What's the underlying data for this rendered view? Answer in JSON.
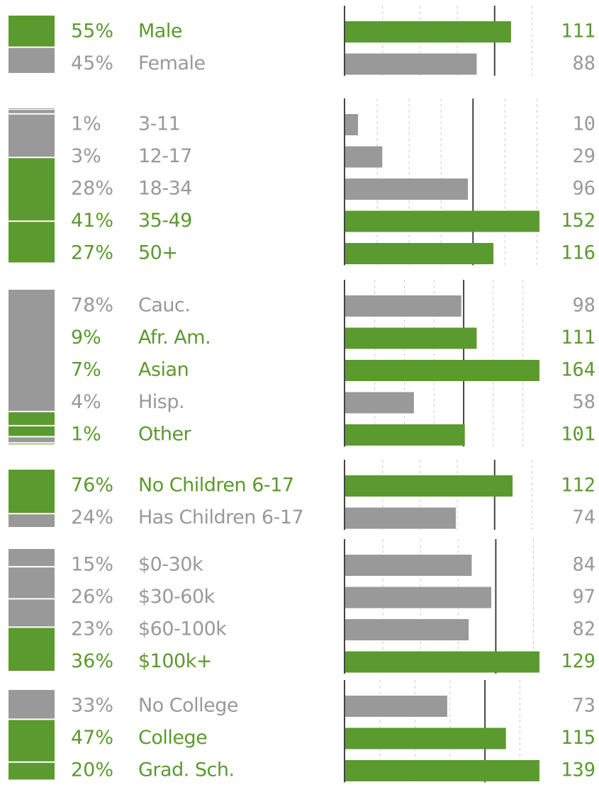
{
  "chart_data": [
    {
      "type": "bar",
      "categories": [
        "Male",
        "Female"
      ],
      "shares": [
        55,
        45
      ],
      "share_labels": [
        "55%",
        "45%"
      ],
      "values": [
        111,
        88
      ],
      "xlim": [
        0,
        130
      ],
      "xticks": [
        25,
        50,
        75,
        100,
        125
      ],
      "reference": 100,
      "color": "#999999",
      "highlight_color": "#5b9a2e"
    },
    {
      "type": "bar",
      "categories": [
        "3-11",
        "12-17",
        "18-34",
        "35-49",
        "50+"
      ],
      "shares": [
        1,
        3,
        28,
        41,
        27
      ],
      "share_labels": [
        "1%",
        "3%",
        "28%",
        "41%",
        "27%"
      ],
      "values": [
        10,
        29,
        96,
        152,
        116
      ],
      "xlim": [
        0,
        152
      ],
      "xticks": [
        25,
        50,
        75,
        100,
        125,
        150
      ],
      "reference": 100,
      "color": "#999999",
      "highlight_color": "#5b9a2e"
    },
    {
      "type": "bar",
      "categories": [
        "Cauc.",
        "Afr. Am.",
        "Asian",
        "Hisp.",
        "Other"
      ],
      "shares": [
        78,
        9,
        7,
        4,
        1
      ],
      "share_labels": [
        "78%",
        "9%",
        "7%",
        "4%",
        "1%"
      ],
      "values": [
        98,
        111,
        164,
        58,
        101
      ],
      "xlim": [
        0,
        164
      ],
      "xticks": [
        25,
        50,
        75,
        100,
        125,
        150
      ],
      "reference": 100,
      "color": "#999999",
      "highlight_color": "#5b9a2e"
    },
    {
      "type": "bar",
      "categories": [
        "No Children 6-17",
        "Has Children 6-17"
      ],
      "shares": [
        76,
        24
      ],
      "share_labels": [
        "76%",
        "24%"
      ],
      "values": [
        112,
        74
      ],
      "xlim": [
        0,
        130
      ],
      "xticks": [
        25,
        50,
        75,
        100,
        125
      ],
      "reference": 100,
      "color": "#999999",
      "highlight_color": "#5b9a2e"
    },
    {
      "type": "bar",
      "categories": [
        "$0-30k",
        "$30-60k",
        "$60-100k",
        "$100k+"
      ],
      "shares": [
        15,
        26,
        23,
        36
      ],
      "share_labels": [
        "15%",
        "26%",
        "23%",
        "36%"
      ],
      "values": [
        84,
        97,
        82,
        129
      ],
      "xlim": [
        0,
        129
      ],
      "xticks": [
        25,
        50,
        75,
        100,
        125
      ],
      "reference": 100,
      "color": "#999999",
      "highlight_color": "#5b9a2e"
    },
    {
      "type": "bar",
      "categories": [
        "No College",
        "College",
        "Grad. Sch."
      ],
      "shares": [
        33,
        47,
        20
      ],
      "share_labels": [
        "33%",
        "47%",
        "20%"
      ],
      "values": [
        73,
        115,
        139
      ],
      "xlim": [
        0,
        139
      ],
      "xticks": [
        25,
        50,
        75,
        100,
        125
      ],
      "reference": 100,
      "color": "#999999",
      "highlight_color": "#5b9a2e"
    }
  ]
}
